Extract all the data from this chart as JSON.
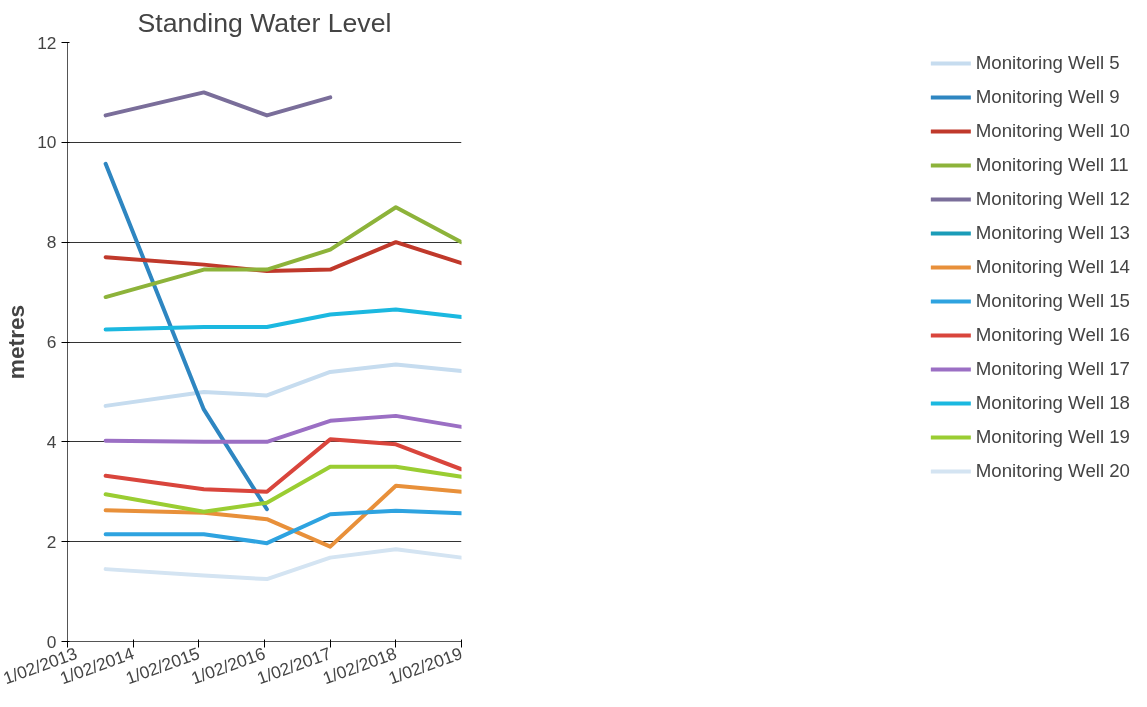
{
  "chart_data": {
    "type": "line",
    "title": "Standing Water Level",
    "ylabel": "metres",
    "x": [
      "2013-09-01",
      "2015-03-01",
      "2016-02-15",
      "2017-02-01",
      "2018-02-01",
      "2019-02-01"
    ],
    "xlim": [
      "2013-02-01",
      "2019-02-01"
    ],
    "xticks": [
      {
        "value": "2013-02-01",
        "label": "1/02/2013"
      },
      {
        "value": "2014-02-01",
        "label": "1/02/2014"
      },
      {
        "value": "2015-02-01",
        "label": "1/02/2015"
      },
      {
        "value": "2016-02-01",
        "label": "1/02/2016"
      },
      {
        "value": "2017-02-01",
        "label": "1/02/2017"
      },
      {
        "value": "2018-02-01",
        "label": "1/02/2018"
      },
      {
        "value": "2019-02-01",
        "label": "1/02/2019"
      }
    ],
    "ylim": [
      0,
      12
    ],
    "yticks": [
      0,
      2,
      4,
      6,
      8,
      10,
      12
    ],
    "grid": "y",
    "legend": "right",
    "series": [
      {
        "name": "Monitoring Well 5",
        "color": "#c6dcef",
        "values": [
          4.72,
          5.0,
          4.93,
          5.4,
          5.55,
          5.42
        ]
      },
      {
        "name": "Monitoring Well 9",
        "color": "#2e86c1",
        "values": [
          9.57,
          4.65,
          2.65,
          null,
          null,
          null
        ]
      },
      {
        "name": "Monitoring Well 10",
        "color": "#c0392b",
        "values": [
          7.7,
          7.55,
          7.42,
          7.45,
          8.0,
          7.58
        ]
      },
      {
        "name": "Monitoring Well 11",
        "color": "#8db33a",
        "values": [
          6.9,
          7.45,
          7.45,
          7.85,
          8.7,
          8.0
        ]
      },
      {
        "name": "Monitoring Well 12",
        "color": "#7a6e9a",
        "values": [
          10.54,
          11.0,
          10.54,
          10.9,
          null,
          null
        ]
      },
      {
        "name": "Monitoring Well 13",
        "color": "#1a9cb8",
        "values": [
          null,
          null,
          null,
          null,
          null,
          null
        ]
      },
      {
        "name": "Monitoring Well 14",
        "color": "#e8903a",
        "values": [
          2.63,
          2.58,
          2.45,
          1.9,
          3.12,
          3.0
        ]
      },
      {
        "name": "Monitoring Well 15",
        "color": "#2ea3e0",
        "values": [
          2.15,
          2.15,
          1.97,
          2.55,
          2.62,
          2.57
        ]
      },
      {
        "name": "Monitoring Well 16",
        "color": "#d9453c",
        "values": [
          3.32,
          3.05,
          3.0,
          4.05,
          3.95,
          3.45
        ]
      },
      {
        "name": "Monitoring Well 17",
        "color": "#9b6fc4",
        "values": [
          4.02,
          4.0,
          4.0,
          4.42,
          4.52,
          4.3
        ]
      },
      {
        "name": "Monitoring Well 18",
        "color": "#1bb8e0",
        "values": [
          6.25,
          6.3,
          6.3,
          6.55,
          6.65,
          6.5
        ]
      },
      {
        "name": "Monitoring Well 19",
        "color": "#9acd32",
        "values": [
          2.95,
          2.6,
          2.78,
          3.5,
          3.5,
          3.3
        ]
      },
      {
        "name": "Monitoring Well 20",
        "color": "#d4e4f2",
        "values": [
          1.45,
          1.32,
          1.25,
          1.68,
          1.85,
          1.68
        ]
      }
    ]
  }
}
